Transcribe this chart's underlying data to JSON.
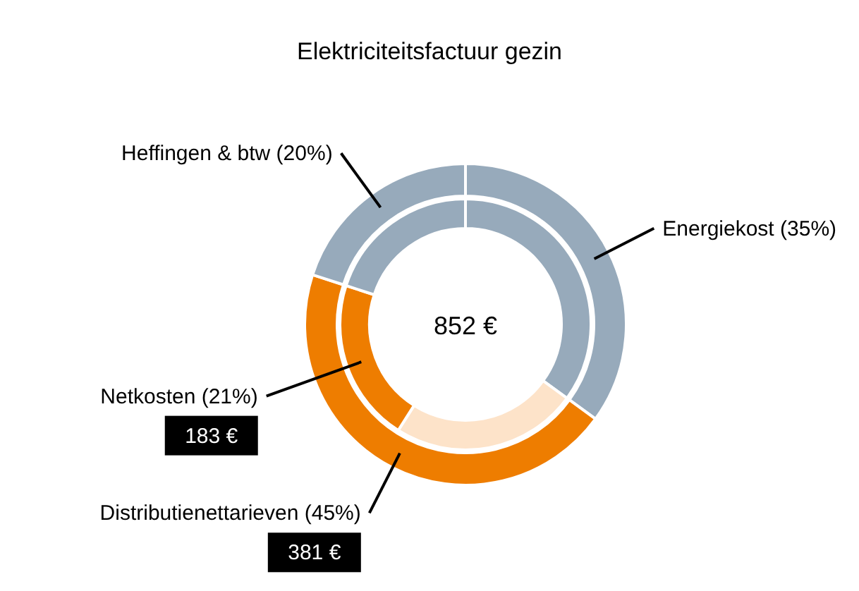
{
  "chart_data": [
    {
      "type": "donut",
      "title": "Elektriciteitsfactuur gezin",
      "annotations": [
        "852 €",
        "381 €"
      ],
      "categories": [
        "Energiekost (35%)",
        "Distributienettarieven (45%)",
        "Heffingen & btw (20%)"
      ],
      "values": [
        35,
        45,
        20
      ],
      "colors": [
        "#97aabb",
        "#ee7d00",
        "#97aabb"
      ]
    },
    {
      "type": "donut",
      "annotations": [
        "183 €"
      ],
      "categories": [
        null,
        null,
        "Netkosten (21%)",
        null
      ],
      "values": [
        35,
        24,
        21,
        20
      ],
      "colors": [
        "#97aabb",
        "#fde3c9",
        "#ee7d00",
        "#97aabb"
      ]
    }
  ]
}
